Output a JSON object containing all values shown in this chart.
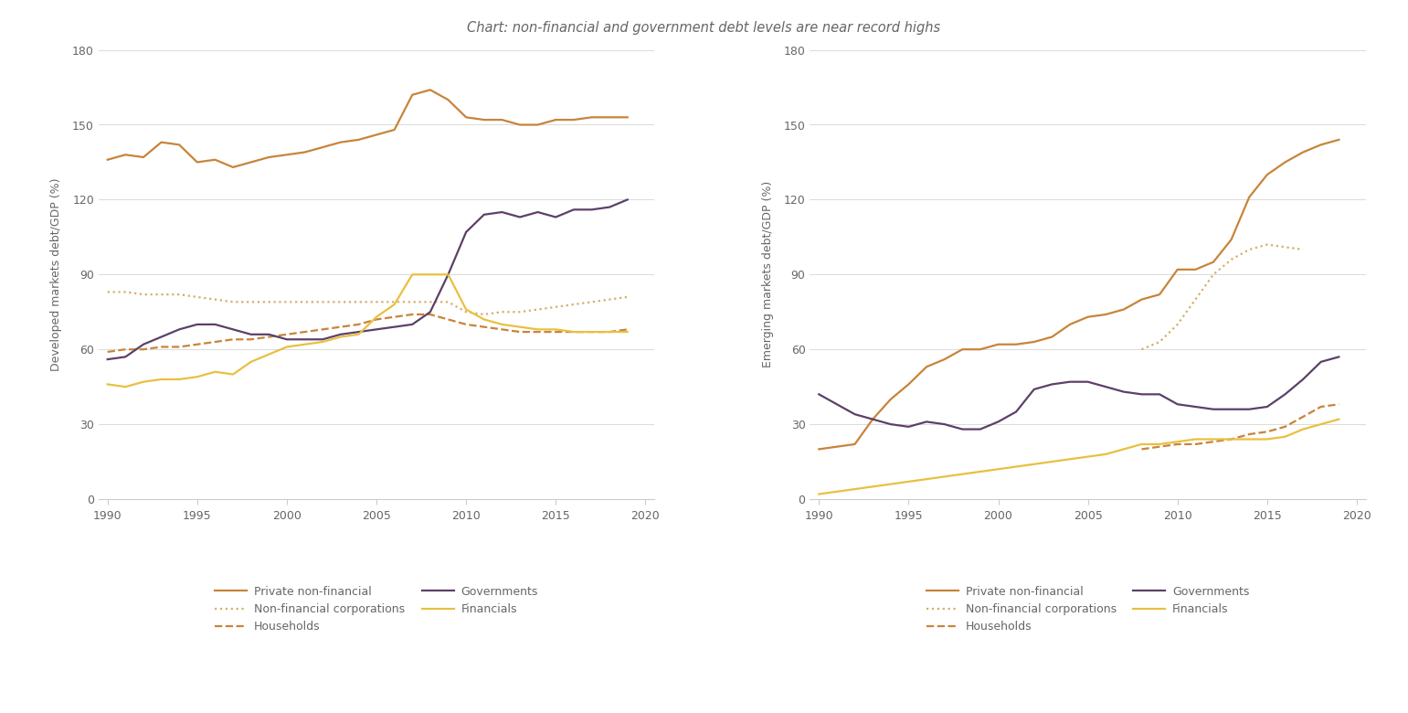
{
  "years": [
    1990,
    1991,
    1992,
    1993,
    1994,
    1995,
    1996,
    1997,
    1998,
    1999,
    2000,
    2001,
    2002,
    2003,
    2004,
    2005,
    2006,
    2007,
    2008,
    2009,
    2010,
    2011,
    2012,
    2013,
    2014,
    2015,
    2016,
    2017,
    2018,
    2019
  ],
  "dev_private_nonfinancial": [
    136,
    138,
    137,
    143,
    142,
    135,
    136,
    133,
    135,
    137,
    138,
    139,
    141,
    143,
    144,
    146,
    148,
    162,
    164,
    160,
    153,
    152,
    152,
    150,
    150,
    152,
    152,
    153,
    153,
    153
  ],
  "dev_households": [
    59,
    60,
    60,
    61,
    61,
    62,
    63,
    64,
    64,
    65,
    66,
    67,
    68,
    69,
    70,
    72,
    73,
    74,
    74,
    72,
    70,
    69,
    68,
    67,
    67,
    67,
    67,
    67,
    67,
    68
  ],
  "dev_nfc": [
    83,
    83,
    82,
    82,
    82,
    81,
    80,
    79,
    79,
    79,
    79,
    79,
    79,
    79,
    79,
    79,
    79,
    79,
    79,
    79,
    75,
    74,
    75,
    75,
    76,
    77,
    78,
    79,
    80,
    81
  ],
  "dev_governments": [
    56,
    57,
    62,
    65,
    68,
    70,
    70,
    68,
    66,
    66,
    64,
    64,
    64,
    66,
    67,
    68,
    69,
    70,
    75,
    90,
    107,
    114,
    115,
    113,
    115,
    113,
    116,
    116,
    117,
    120
  ],
  "dev_financials": [
    46,
    45,
    47,
    48,
    48,
    49,
    51,
    50,
    55,
    58,
    61,
    62,
    63,
    65,
    66,
    73,
    78,
    90,
    90,
    90,
    76,
    72,
    70,
    69,
    68,
    68,
    67,
    67,
    67,
    67
  ],
  "em_private_nonfinancial": [
    20,
    21,
    22,
    32,
    40,
    46,
    53,
    56,
    60,
    60,
    62,
    62,
    63,
    65,
    70,
    73,
    74,
    76,
    80,
    82,
    92,
    92,
    95,
    104,
    121,
    130,
    135,
    139,
    142,
    144
  ],
  "em_households": [
    null,
    null,
    null,
    null,
    null,
    null,
    null,
    null,
    null,
    null,
    null,
    null,
    null,
    null,
    null,
    null,
    null,
    null,
    20,
    21,
    22,
    22,
    23,
    24,
    26,
    27,
    29,
    33,
    37,
    38
  ],
  "em_nfc": [
    null,
    null,
    null,
    null,
    null,
    null,
    null,
    null,
    null,
    null,
    null,
    null,
    null,
    null,
    null,
    null,
    null,
    null,
    60,
    63,
    70,
    80,
    90,
    96,
    100,
    102,
    101,
    100,
    null,
    null
  ],
  "em_governments": [
    42,
    38,
    34,
    32,
    30,
    29,
    31,
    30,
    28,
    28,
    31,
    35,
    44,
    46,
    47,
    47,
    45,
    43,
    42,
    42,
    38,
    37,
    36,
    36,
    36,
    37,
    42,
    48,
    55,
    57
  ],
  "em_financials": [
    2,
    3,
    4,
    5,
    6,
    7,
    8,
    9,
    10,
    11,
    12,
    13,
    14,
    15,
    16,
    17,
    18,
    20,
    22,
    22,
    23,
    24,
    24,
    24,
    24,
    24,
    25,
    28,
    30,
    32
  ],
  "color_private_nonfinancial": "#C8843A",
  "color_households": "#C8843A",
  "color_nfc": "#D4AF6B",
  "color_governments": "#5C4068",
  "color_financials": "#E8C040",
  "dev_ylabel": "Developed markets debt/GDP (%)",
  "em_ylabel": "Emerging markets debt/GDP (%)",
  "ylim": [
    0,
    180
  ],
  "yticks": [
    0,
    30,
    60,
    90,
    120,
    150,
    180
  ],
  "xlim": [
    1989.5,
    2020.5
  ],
  "xticks": [
    1990,
    1995,
    2000,
    2005,
    2010,
    2015,
    2020
  ],
  "bg_color": "#FFFFFF",
  "text_color": "#666666",
  "grid_color": "#CCCCCC",
  "title": "Chart: non-financial and government debt levels are near record highs"
}
